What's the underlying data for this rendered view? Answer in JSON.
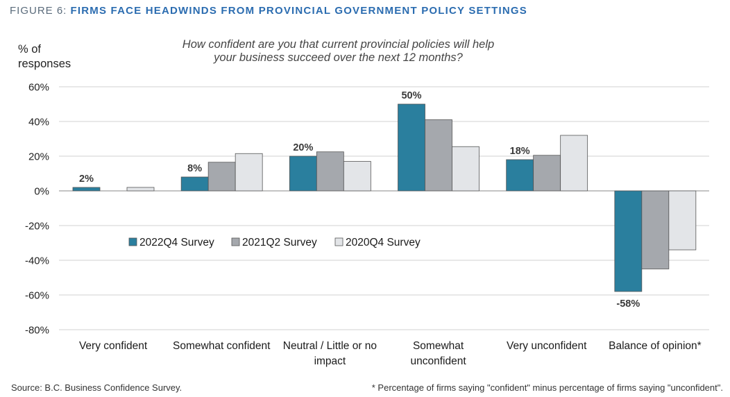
{
  "figure": {
    "label": "FIGURE 6:",
    "title": "FIRMS FACE HEADWINDS FROM PROVINCIAL GOVERNMENT POLICY SETTINGS"
  },
  "question_line1": "How confident are you that current provincial policies will help",
  "question_line2": "your business succeed over the next 12 months?",
  "ylabel_line1": "% of",
  "ylabel_line2": "responses",
  "source": "Source:  B.C. Business Confidence Survey.",
  "footnote": "* Percentage of firms saying \"confident\" minus percentage of firms saying \"unconfident\".",
  "colors": {
    "series1": "#2a7f9e",
    "series2": "#a5a8ad",
    "series3": "#e3e5e8",
    "grid": "#d0d0d0",
    "zero": "#8a8a8a"
  },
  "chart_data": {
    "type": "bar",
    "categories": [
      [
        "Very confident"
      ],
      [
        "Somewhat confident"
      ],
      [
        "Neutral / Little or no",
        "impact"
      ],
      [
        "Somewhat",
        "unconfident"
      ],
      [
        "Very unconfident"
      ],
      [
        "Balance of opinion*"
      ]
    ],
    "series": [
      {
        "name": "2022Q4 Survey",
        "values": [
          2,
          8,
          20,
          50,
          18,
          -58
        ]
      },
      {
        "name": "2021Q2 Survey",
        "values": [
          0,
          16.5,
          22.5,
          41,
          20.5,
          -45
        ]
      },
      {
        "name": "2020Q4 Survey",
        "values": [
          2,
          21.5,
          17,
          25.5,
          32,
          -34
        ]
      }
    ],
    "data_labels": [
      "2%",
      "8%",
      "20%",
      "50%",
      "18%",
      "-58%"
    ],
    "yticks": [
      "60%",
      "40%",
      "20%",
      "0%",
      "-20%",
      "-40%",
      "-60%",
      "-80%"
    ],
    "ylim": [
      -80,
      60
    ],
    "grid": true,
    "legend_placement": "center-left"
  }
}
